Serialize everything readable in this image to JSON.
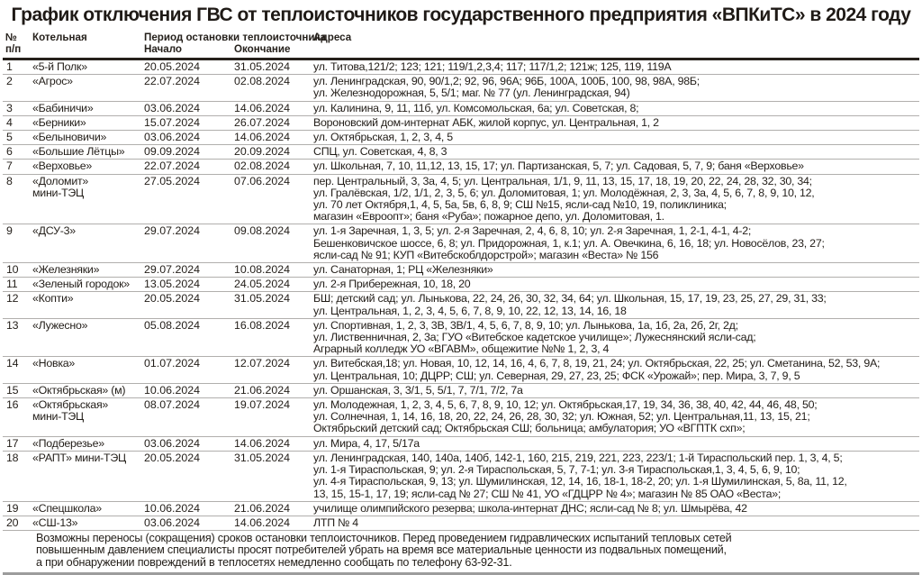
{
  "title": "График отключения ГВС от теплоисточников государственного предприятия «ВПКиТС» в 2024 году",
  "table": {
    "headers": {
      "num_top": "№",
      "num_bottom": "п/п",
      "boiler": "Котельная",
      "period_group": "Период остановки теплоисточника",
      "period_start": "Начало",
      "period_end": "Окончание",
      "addresses": "Адреса"
    },
    "rows": [
      {
        "num": "1",
        "boiler": "«5-й Полк»",
        "start": "20.05.2024",
        "end": "31.05.2024",
        "addresses": "ул. Титова,121/2; 123; 121; 119/1,2,3,4; 117; 117/1,2; 121ж; 125, 119, 119А"
      },
      {
        "num": "2",
        "boiler": "«Агрос»",
        "start": "22.07.2024",
        "end": "02.08.2024",
        "addresses": "ул. Ленинградская, 90, 90/1,2; 92, 96, 96А; 96Б, 100А, 100Б, 100, 98, 98А, 98Б;\nул. Железнодорожная, 5, 5/1; маг. № 77 (ул. Ленинградская, 94)"
      },
      {
        "num": "3",
        "boiler": "«Бабиничи»",
        "start": "03.06.2024",
        "end": "14.06.2024",
        "addresses": "ул. Калинина, 9, 11, 11б, ул. Комсомольская, 6а; ул. Советская, 8;"
      },
      {
        "num": "4",
        "boiler": "«Берники»",
        "start": "15.07.2024",
        "end": "26.07.2024",
        "addresses": "Вороновский дом-интернат АБК, жилой корпус, ул. Центральная, 1, 2"
      },
      {
        "num": "5",
        "boiler": "«Белыновичи»",
        "start": "03.06.2024",
        "end": "14.06.2024",
        "addresses": "ул. Октябрьская, 1, 2, 3, 4, 5"
      },
      {
        "num": "6",
        "boiler": "«Большие Лётцы»",
        "start": "09.09.2024",
        "end": "20.09.2024",
        "addresses": "СПЦ, ул. Советская, 4, 8, 3"
      },
      {
        "num": "7",
        "boiler": "«Верховье»",
        "start": "22.07.2024",
        "end": "02.08.2024",
        "addresses": "ул. Школьная, 7, 10, 11,12, 13, 15, 17; ул. Партизанская, 5, 7; ул. Садовая, 5, 7, 9; баня «Верховье»"
      },
      {
        "num": "8",
        "boiler": "«Доломит»\nмини-ТЭЦ",
        "start": "27.05.2024",
        "end": "07.06.2024",
        "addresses": "пер. Центральный, 3, 3а, 4, 5; ул. Центральная, 1/1, 9, 11, 13, 15, 17, 18, 19, 20, 22, 24, 28, 32, 30, 34;\nул. Гралёвская, 1/2, 1/1, 2, 3, 5, 6; ул. Доломитовая, 1; ул. Молодёжная, 2, 3, 3а, 4, 5, 6, 7, 8, 9, 10, 12,\nул. 70 лет Октября,1, 4, 5, 5а, 5в, 6, 8, 9; СШ №15, ясли-сад №10, 19, поликлиника;\nмагазин «Евроопт»; баня «Руба»; пожарное депо, ул. Доломитовая, 1."
      },
      {
        "num": "9",
        "boiler": "«ДСУ-3»",
        "start": "29.07.2024",
        "end": "09.08.2024",
        "addresses": "ул. 1-я Заречная, 1, 3, 5; ул. 2-я Заречная, 2, 4, 6, 8, 10; ул. 2-я Заречная, 1, 2-1, 4-1, 4-2;\nБешенковичское шоссе, 6, 8; ул. Придорожная, 1, к.1; ул. А. Овечкина, 6, 16, 18; ул. Новосёлов, 23, 27;\nясли-сад № 91; КУП «Витебскоблдорстрой»; магазин «Веста» № 156"
      },
      {
        "num": "10",
        "boiler": "«Железняки»",
        "start": "29.07.2024",
        "end": "10.08.2024",
        "addresses": "ул. Санаторная, 1; РЦ «Железняки»"
      },
      {
        "num": "11",
        "boiler": "«Зеленый городок»",
        "start": "13.05.2024",
        "end": "24.05.2024",
        "addresses": "ул. 2-я Прибережная, 10, 18, 20"
      },
      {
        "num": "12",
        "boiler": "«Копти»",
        "start": "20.05.2024",
        "end": "31.05.2024",
        "addresses": "БШ; детский сад; ул. Лынькова, 22, 24, 26, 30, 32, 34, 64; ул. Школьная, 15, 17, 19, 23, 25, 27, 29, 31, 33;\nул. Центральная, 1, 2, 3, 4, 5, 6, 7, 8, 9, 10, 22, 12, 13, 14, 16, 18"
      },
      {
        "num": "13",
        "boiler": "«Лужесно»",
        "start": "05.08.2024",
        "end": "16.08.2024",
        "addresses": "ул. Спортивная, 1, 2, 3, 3В, 3В/1, 4, 5, 6, 7, 8, 9, 10; ул. Лынькова, 1а, 1б, 2а, 2б, 2г, 2д;\nул. Лиственничная, 2, 3а; ГУО «Витебское кадетское училище»; Лужеснянский ясли-сад;\nАграрный колледж УО «ВГАВМ», общежитие №№ 1, 2, 3, 4"
      },
      {
        "num": "14",
        "boiler": "«Новка»",
        "start": "01.07.2024",
        "end": "12.07.2024",
        "addresses": "ул. Витебская,18; ул. Новая, 10, 12, 14, 16, 4, 6, 7, 8, 19, 21, 24; ул. Октябрьская, 22, 25; ул. Сметанина, 52, 53, 9А;\nул. Центральная, 10; ДЦРР; СШ; ул. Северная, 29, 27, 23, 25; ФСК «Урожай»; пер. Мира, 3, 7, 9, 5"
      },
      {
        "num": "15",
        "boiler": "«Октябрьская» (м)",
        "start": "10.06.2024",
        "end": "21.06.2024",
        "addresses": "ул. Оршанская, 3, 3/1, 5, 5/1, 7, 7/1, 7/2, 7а"
      },
      {
        "num": "16",
        "boiler": "«Октябрьская»\nмини-ТЭЦ",
        "start": "08.07.2024",
        "end": "19.07.2024",
        "addresses": "ул. Молодежная, 1, 2, 3, 4, 5, 6, 7, 8, 9, 10, 12; ул. Октябрьская,17, 19, 34, 36, 38, 40, 42, 44, 46, 48, 50;\nул. Солнечная, 1, 14, 16, 18, 20, 22, 24, 26, 28, 30, 32; ул. Южная, 52; ул. Центральная,11, 13, 15, 21;\nОктябрьский детский сад; Октябрьская СШ; больница; амбулатория; УО «ВГПТК схп»;"
      },
      {
        "num": "17",
        "boiler": "«Подберезье»",
        "start": "03.06.2024",
        "end": "14.06.2024",
        "addresses": "ул. Мира, 4, 17, 5/17а"
      },
      {
        "num": "18",
        "boiler": "«РАПТ» мини-ТЭЦ",
        "start": "20.05.2024",
        "end": "31.05.2024",
        "addresses": "ул. Ленинградская, 140, 140а, 140б, 142-1, 160, 215, 219, 221, 223, 223/1; 1-й Тираспольский пер. 1, 3, 4, 5;\nул. 1-я Тираспольская, 9; ул. 2-я Тираспольская, 5, 7, 7-1; ул. 3-я Тираспольская,1, 3, 4, 5, 6, 9, 10;\nул. 4-я Тираспольская, 9, 13; ул. Шумилинская, 12, 14, 16, 18-1, 18-2, 20; ул. 1-я Шумилинская, 5, 8а, 11, 12,\n13, 15, 15-1, 17, 19; ясли-сад № 27; СШ № 41, УО «ГДЦРР № 4»; магазин № 85 ОАО «Веста»;"
      },
      {
        "num": "19",
        "boiler": "«Спецшкола»",
        "start": "10.06.2024",
        "end": "21.06.2024",
        "addresses": "училище олимпийского резерва; школа-интернат ДНС; ясли-сад № 8; ул. Шмырёва, 42"
      },
      {
        "num": "20",
        "boiler": "«СШ-13»",
        "start": "03.06.2024",
        "end": "14.06.2024",
        "addresses": "ЛТП № 4"
      }
    ]
  },
  "footnote": "Возможны переносы (сокращения) сроков остановки теплоисточников. Перед проведением гидравлических испытаний тепловых сетей\nповышенным давлением специалисты просят потребителей убрать на время все материальные ценности из подвальных помещений,\nа при обнаружении повреждений в теплосетях немедленно сообщать по телефону 63-92-31."
}
